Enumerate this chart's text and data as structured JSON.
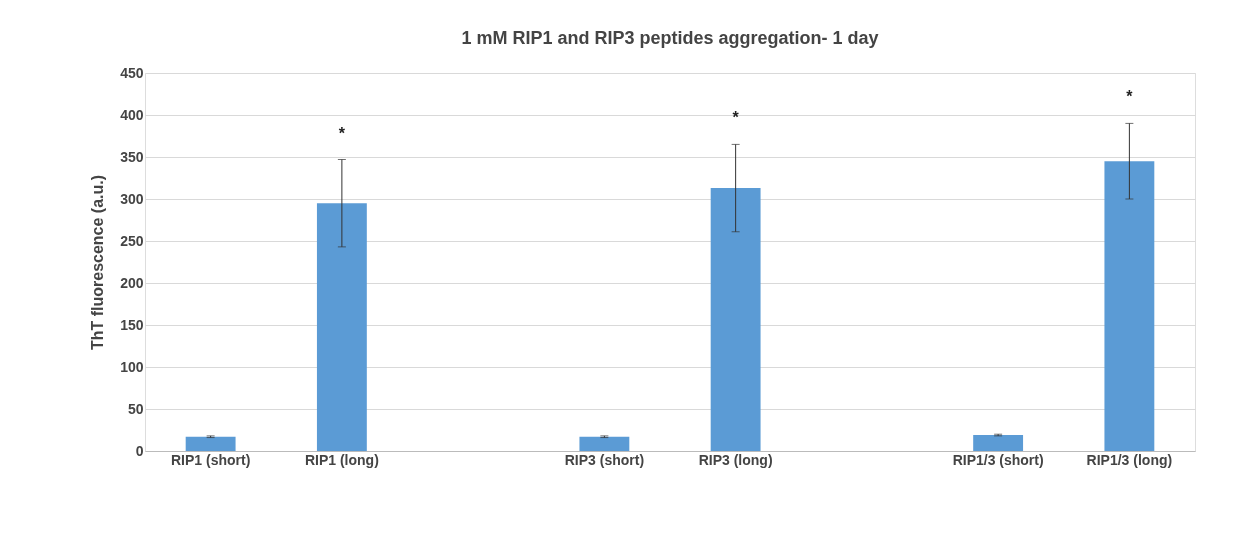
{
  "chart_data": {
    "type": "bar",
    "title": "1 mM RIP1 and RIP3 peptides aggregation- 1 day",
    "ylabel": "ThT fluorescence (a.u.)",
    "categories": [
      "RIP1 (short)",
      "RIP1 (long)",
      null,
      "RIP3 (short)",
      "RIP3 (long)",
      null,
      "RIP1/3 (short)",
      "RIP1/3 (long)"
    ],
    "values": [
      17,
      295,
      null,
      17,
      313,
      null,
      19,
      345
    ],
    "errors": [
      1,
      52,
      null,
      1,
      52,
      null,
      1,
      45
    ],
    "color": "#5b9bd5",
    "ylim": [
      0,
      450
    ],
    "yticks": [
      0,
      50,
      100,
      150,
      200,
      250,
      300,
      350,
      400,
      450
    ],
    "grid": "y",
    "annotations": [
      "*",
      "*",
      "*"
    ]
  }
}
